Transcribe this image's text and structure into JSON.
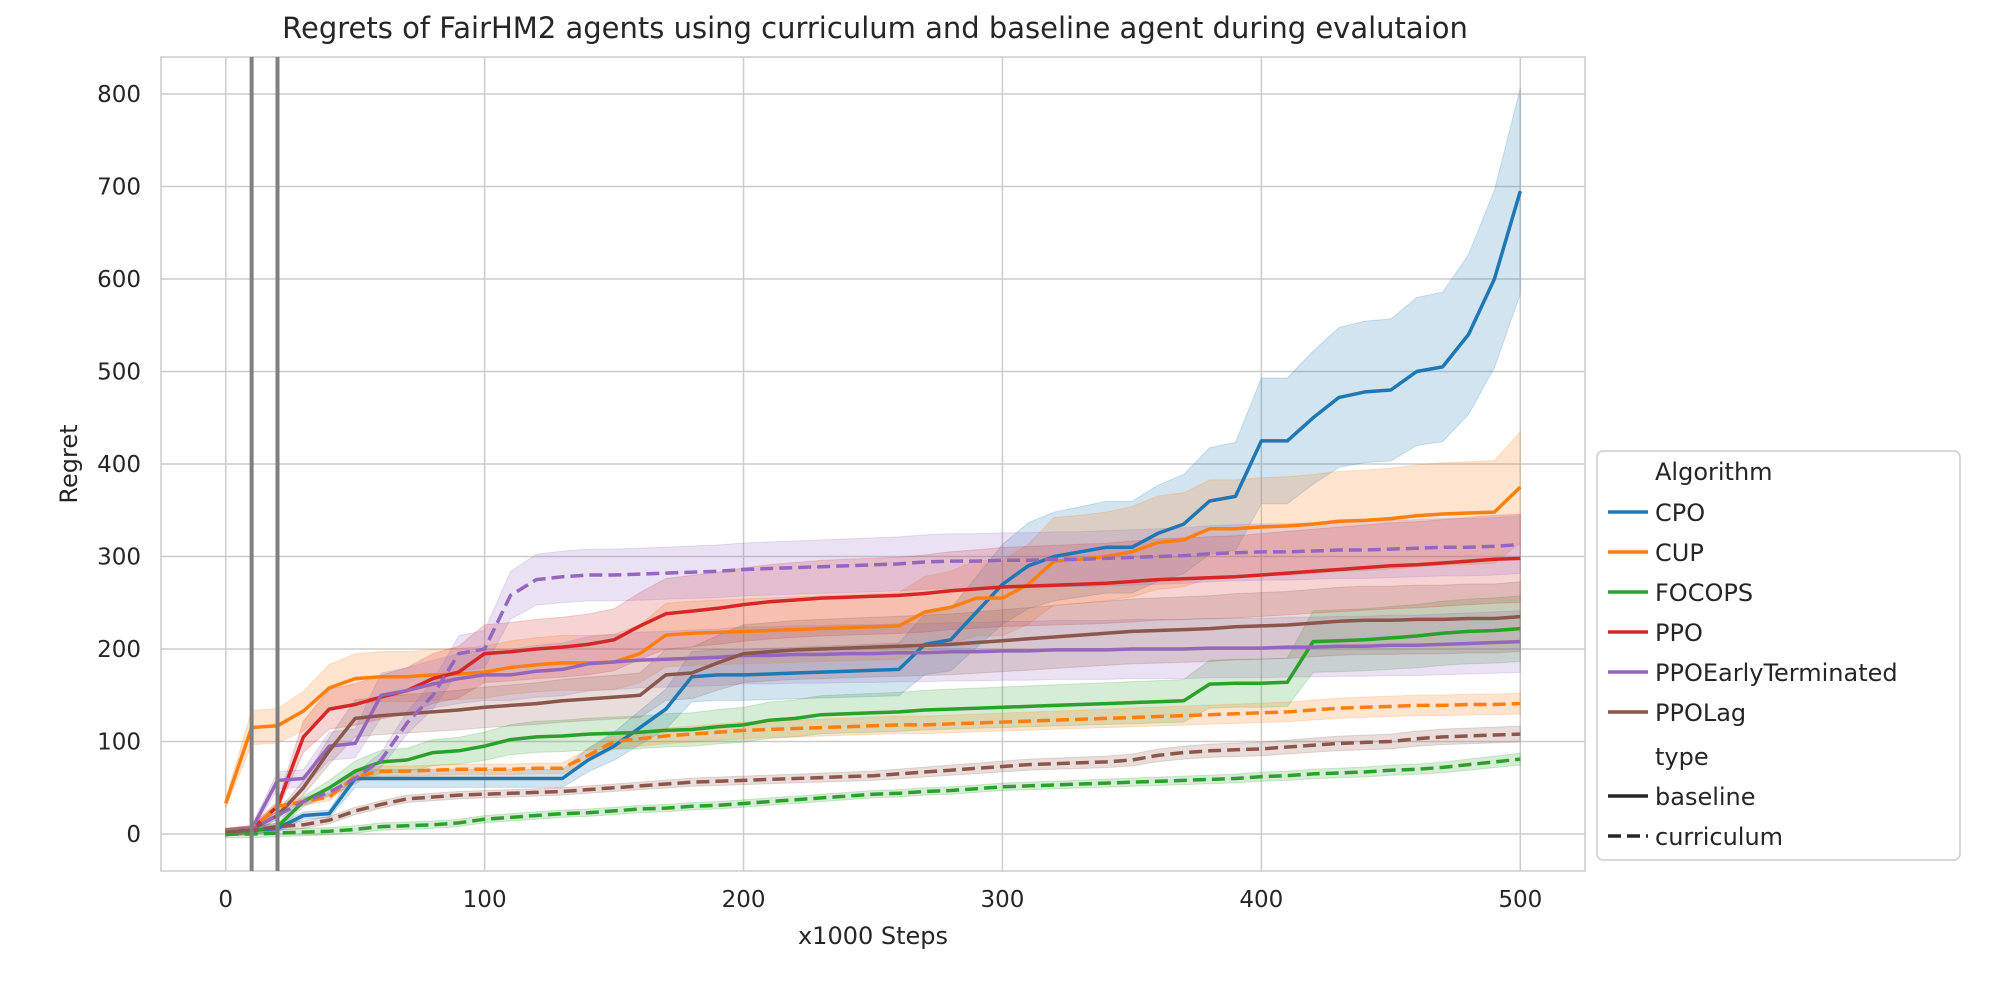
{
  "chart_data": {
    "type": "line",
    "title": "Regrets of FairHM2 agents using curriculum and baseline agent during evalutaion",
    "xlabel": "x1000 Steps",
    "ylabel": "Regret",
    "xlim": [
      -25,
      525
    ],
    "ylim": [
      -40,
      840
    ],
    "xticks": [
      0,
      100,
      200,
      300,
      400,
      500
    ],
    "yticks": [
      0,
      100,
      200,
      300,
      400,
      500,
      600,
      700,
      800
    ],
    "grid": true,
    "legend_position": "lower-right outside plot",
    "vertical_markers": [
      10,
      20
    ],
    "legend": {
      "hue_title": "Algorithm",
      "style_title": "type",
      "styles": [
        {
          "label": "baseline",
          "dash": "solid"
        },
        {
          "label": "curriculum",
          "dash": "dashed"
        }
      ]
    },
    "x": [
      0,
      10,
      20,
      30,
      40,
      50,
      60,
      70,
      80,
      90,
      100,
      110,
      120,
      130,
      140,
      150,
      160,
      170,
      180,
      190,
      200,
      210,
      220,
      230,
      240,
      250,
      260,
      270,
      280,
      290,
      300,
      310,
      320,
      330,
      340,
      350,
      360,
      370,
      380,
      390,
      400,
      410,
      420,
      430,
      440,
      450,
      460,
      470,
      480,
      490,
      500
    ],
    "series": [
      {
        "name": "CPO",
        "type": "baseline",
        "color": "#1f77b4",
        "band": 0.16,
        "values": [
          2,
          4,
          6,
          20,
          22,
          60,
          60,
          60,
          60,
          60,
          60,
          60,
          60,
          60,
          80,
          95,
          115,
          135,
          170,
          172,
          172,
          173,
          174,
          175,
          176,
          177,
          178,
          205,
          210,
          240,
          270,
          290,
          300,
          305,
          310,
          310,
          325,
          335,
          360,
          365,
          425,
          425,
          450,
          472,
          478,
          480,
          500,
          505,
          540,
          600,
          695
        ]
      },
      {
        "name": "CUP",
        "type": "baseline",
        "color": "#ff7f0e",
        "band": 0.16,
        "values": [
          33,
          115,
          117,
          133,
          158,
          168,
          170,
          170,
          172,
          173,
          175,
          180,
          183,
          185,
          185,
          186,
          195,
          215,
          217,
          218,
          219,
          220,
          221,
          222,
          223,
          224,
          225,
          240,
          245,
          255,
          255,
          270,
          295,
          297,
          300,
          305,
          315,
          318,
          330,
          330,
          332,
          333,
          335,
          338,
          339,
          341,
          344,
          346,
          347,
          348,
          375
        ]
      },
      {
        "name": "FOCOPS",
        "type": "baseline",
        "color": "#2ca02c",
        "band": 0.16,
        "values": [
          2,
          3,
          8,
          35,
          50,
          68,
          78,
          80,
          88,
          90,
          95,
          102,
          105,
          106,
          108,
          109,
          110,
          112,
          113,
          116,
          118,
          123,
          125,
          129,
          130,
          131,
          132,
          134,
          135,
          136,
          137,
          138,
          139,
          140,
          141,
          142,
          143,
          144,
          162,
          163,
          163,
          164,
          208,
          209,
          210,
          212,
          214,
          217,
          219,
          220,
          222
        ]
      },
      {
        "name": "PPO",
        "type": "baseline",
        "color": "#d62728",
        "band": 0.16,
        "values": [
          2,
          5,
          30,
          105,
          135,
          140,
          148,
          155,
          168,
          175,
          195,
          197,
          200,
          202,
          205,
          210,
          225,
          238,
          241,
          244,
          248,
          251,
          253,
          255,
          256,
          257,
          258,
          260,
          263,
          265,
          267,
          268,
          269,
          270,
          271,
          273,
          275,
          276,
          277,
          278,
          280,
          282,
          284,
          286,
          288,
          290,
          291,
          293,
          295,
          297,
          298
        ]
      },
      {
        "name": "PPOEarlyTerminated",
        "type": "baseline",
        "color": "#9467bd",
        "band": 0.16,
        "values": [
          2,
          5,
          58,
          60,
          95,
          98,
          150,
          155,
          162,
          168,
          172,
          172,
          176,
          178,
          184,
          186,
          188,
          189,
          190,
          191,
          193,
          193,
          194,
          194,
          195,
          195,
          196,
          196,
          197,
          197,
          198,
          198,
          199,
          199,
          199,
          200,
          200,
          200,
          201,
          201,
          201,
          202,
          202,
          203,
          203,
          204,
          204,
          205,
          206,
          207,
          208
        ]
      },
      {
        "name": "PPOLag",
        "type": "baseline",
        "color": "#8c564b",
        "band": 0.16,
        "values": [
          2,
          5,
          20,
          50,
          90,
          125,
          128,
          130,
          132,
          134,
          137,
          139,
          141,
          144,
          146,
          148,
          150,
          172,
          174,
          185,
          195,
          197,
          199,
          200,
          201,
          202,
          203,
          204,
          205,
          207,
          209,
          211,
          213,
          215,
          217,
          219,
          220,
          221,
          222,
          224,
          225,
          226,
          228,
          230,
          231,
          231,
          232,
          232,
          233,
          233,
          235
        ]
      },
      {
        "name": "CUP",
        "type": "curriculum",
        "color": "#ff7f0e",
        "band": 0.08,
        "values": [
          2,
          5,
          30,
          35,
          40,
          62,
          68,
          68,
          69,
          70,
          70,
          70,
          71,
          71,
          85,
          100,
          103,
          106,
          108,
          110,
          112,
          113,
          114,
          115,
          116,
          117,
          118,
          118,
          119,
          120,
          121,
          122,
          123,
          124,
          125,
          126,
          127,
          128,
          129,
          130,
          131,
          132,
          134,
          136,
          137,
          138,
          139,
          139,
          140,
          140,
          141
        ]
      },
      {
        "name": "FOCOPS",
        "type": "curriculum",
        "color": "#2ca02c",
        "band": 0.08,
        "values": [
          0,
          0,
          1,
          2,
          3,
          5,
          8,
          9,
          10,
          12,
          16,
          18,
          20,
          22,
          23,
          25,
          27,
          28,
          30,
          31,
          33,
          35,
          37,
          39,
          41,
          43,
          44,
          46,
          47,
          49,
          51,
          52,
          53,
          54,
          55,
          56,
          57,
          58,
          59,
          60,
          62,
          63,
          65,
          66,
          67,
          69,
          70,
          72,
          75,
          78,
          81
        ]
      },
      {
        "name": "PPOEarlyTerminated",
        "type": "curriculum",
        "color": "#9467bd",
        "band": 0.1,
        "values": [
          2,
          5,
          20,
          35,
          45,
          60,
          80,
          120,
          150,
          195,
          200,
          258,
          275,
          278,
          280,
          280,
          281,
          282,
          283,
          284,
          286,
          287,
          288,
          289,
          290,
          291,
          292,
          294,
          295,
          295,
          296,
          296,
          297,
          297,
          298,
          299,
          300,
          301,
          303,
          304,
          305,
          305,
          306,
          307,
          307,
          308,
          309,
          310,
          310,
          311,
          313
        ]
      },
      {
        "name": "PPOLag",
        "type": "curriculum",
        "color": "#8c564b",
        "band": 0.08,
        "values": [
          2,
          4,
          8,
          10,
          15,
          25,
          32,
          38,
          40,
          42,
          43,
          44,
          45,
          46,
          48,
          50,
          52,
          54,
          56,
          57,
          58,
          59,
          60,
          61,
          62,
          63,
          65,
          67,
          69,
          71,
          73,
          75,
          76,
          77,
          78,
          80,
          85,
          88,
          90,
          91,
          92,
          94,
          96,
          98,
          99,
          100,
          103,
          105,
          106,
          107,
          108
        ]
      }
    ],
    "legend_entries": [
      {
        "label": "CPO",
        "color": "#1f77b4"
      },
      {
        "label": "CUP",
        "color": "#ff7f0e"
      },
      {
        "label": "FOCOPS",
        "color": "#2ca02c"
      },
      {
        "label": "PPO",
        "color": "#d62728"
      },
      {
        "label": "PPOEarlyTerminated",
        "color": "#9467bd"
      },
      {
        "label": "PPOLag",
        "color": "#8c564b"
      }
    ]
  }
}
